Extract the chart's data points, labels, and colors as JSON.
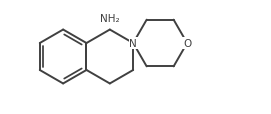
{
  "background_color": "#ffffff",
  "line_color": "#404040",
  "line_width": 1.4,
  "text_color": "#404040",
  "nh2_label": "NH₂",
  "n_label": "N",
  "o_label": "O",
  "figsize": [
    2.71,
    1.15
  ],
  "dpi": 100,
  "xlim": [
    0.0,
    9.5
  ],
  "ylim": [
    0.3,
    4.3
  ]
}
